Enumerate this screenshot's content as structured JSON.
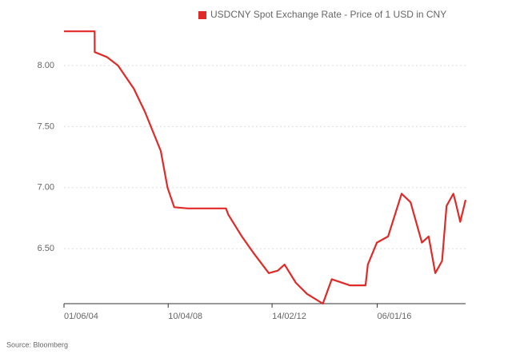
{
  "chart_data": {
    "type": "line",
    "title": "USDCNY Spot Exchange Rate - Price of 1 USD in CNY",
    "source": "Source: Bloomberg",
    "x": [
      "01/06/04",
      "20/07/05",
      "21/07/05",
      "01/01/06",
      "01/06/06",
      "01/01/07",
      "01/06/07",
      "01/01/08",
      "01/04/08",
      "01/07/08",
      "01/01/09",
      "01/01/10",
      "01/06/10",
      "01/07/10",
      "01/01/11",
      "01/06/11",
      "01/01/12",
      "01/05/12",
      "01/08/12",
      "01/01/13",
      "01/06/13",
      "01/01/14",
      "01/05/14",
      "01/01/15",
      "01/08/15",
      "01/09/15",
      "01/01/16",
      "01/06/16",
      "01/12/16",
      "01/04/17",
      "01/09/17",
      "01/12/17",
      "01/03/18",
      "01/06/18",
      "01/08/18",
      "01/11/18",
      "01/12/18",
      "01/02/19",
      "15/04/19"
    ],
    "series": [
      {
        "name": "USDCNY Spot Exchange Rate - Price of 1 USD in CNY",
        "color": "#e02a27",
        "values": [
          8.28,
          8.28,
          8.11,
          8.07,
          8.0,
          7.81,
          7.62,
          7.3,
          7.0,
          6.84,
          6.83,
          6.83,
          6.83,
          6.78,
          6.6,
          6.47,
          6.3,
          6.32,
          6.37,
          6.22,
          6.13,
          6.05,
          6.25,
          6.2,
          6.2,
          6.37,
          6.55,
          6.6,
          6.95,
          6.88,
          6.55,
          6.6,
          6.3,
          6.4,
          6.85,
          6.95,
          6.88,
          6.72,
          6.9
        ]
      }
    ],
    "xlim": [
      "01/06/04",
      "15/04/19"
    ],
    "xticks": [
      "01/06/04",
      "10/04/08",
      "14/02/12",
      "06/01/16"
    ],
    "ylim": [
      6.05,
      8.34
    ],
    "yticks": [
      {
        "value": 6.5,
        "label": "6.50"
      },
      {
        "value": 7.0,
        "label": "7.00"
      },
      {
        "value": 7.5,
        "label": "7.50"
      },
      {
        "value": 8.0,
        "label": "8.00"
      }
    ],
    "grid": true
  }
}
